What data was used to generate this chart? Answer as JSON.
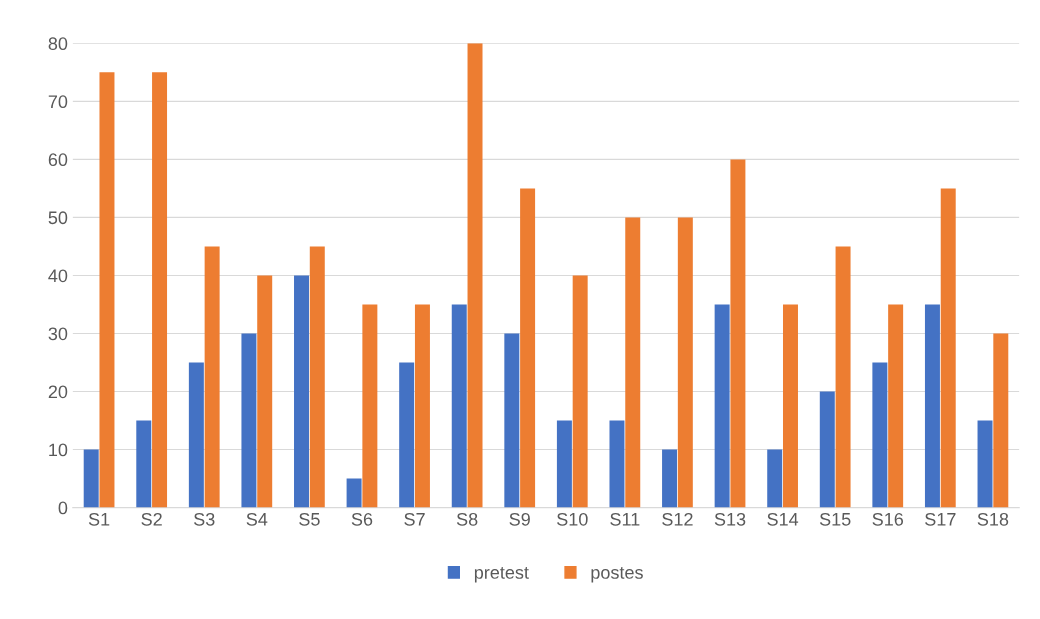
{
  "chart_data": {
    "type": "bar",
    "categories": [
      "S1",
      "S2",
      "S3",
      "S4",
      "S5",
      "S6",
      "S7",
      "S8",
      "S9",
      "S10",
      "S11",
      "S12",
      "S13",
      "S14",
      "S15",
      "S16",
      "S17",
      "S18"
    ],
    "series": [
      {
        "name": "pretest",
        "color": "#4472c4",
        "values": [
          10,
          15,
          25,
          30,
          40,
          5,
          25,
          35,
          30,
          15,
          15,
          10,
          35,
          10,
          20,
          25,
          35,
          15
        ]
      },
      {
        "name": "postes",
        "color": "#ed7d31",
        "values": [
          75,
          75,
          45,
          40,
          45,
          35,
          35,
          80,
          55,
          40,
          50,
          50,
          60,
          35,
          45,
          35,
          55,
          30
        ]
      }
    ],
    "ylim": [
      0,
      80
    ],
    "yticks": [
      0,
      10,
      20,
      30,
      40,
      50,
      60,
      70,
      80
    ],
    "grid": "y",
    "legend": "bottom"
  }
}
